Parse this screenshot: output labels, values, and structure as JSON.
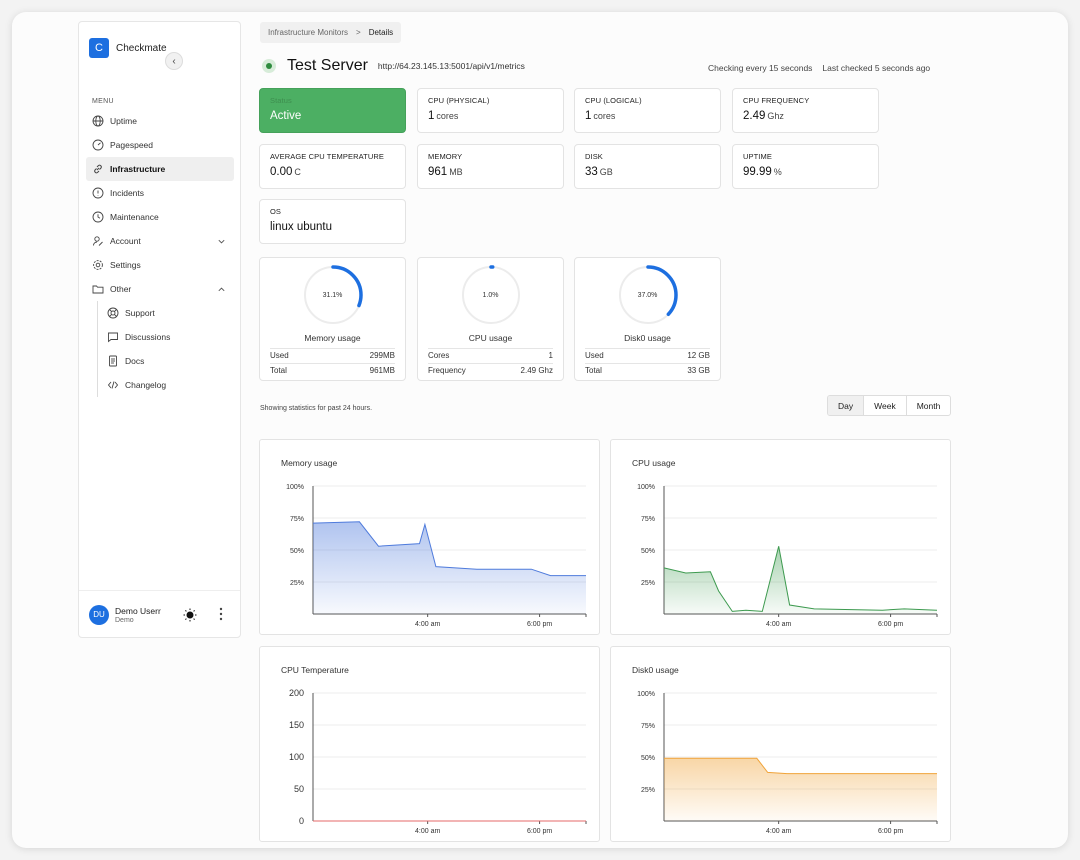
{
  "brand": {
    "logo_letter": "C",
    "name": "Checkmate",
    "accent": "#1d6fe0"
  },
  "sidebar": {
    "menu_label": "MENU",
    "items": [
      {
        "label": "Uptime",
        "icon": "globe-icon"
      },
      {
        "label": "Pagespeed",
        "icon": "gauge-icon"
      },
      {
        "label": "Infrastructure",
        "icon": "link-icon",
        "active": true
      },
      {
        "label": "Incidents",
        "icon": "alert-circle-icon"
      },
      {
        "label": "Maintenance",
        "icon": "clock-icon"
      },
      {
        "label": "Account",
        "icon": "user-edit-icon"
      },
      {
        "label": "Settings",
        "icon": "gear-icon"
      },
      {
        "label": "Other",
        "icon": "folder-icon"
      }
    ],
    "sub_items": [
      {
        "label": "Support",
        "icon": "lifebuoy-icon"
      },
      {
        "label": "Discussions",
        "icon": "chat-icon"
      },
      {
        "label": "Docs",
        "icon": "document-icon"
      },
      {
        "label": "Changelog",
        "icon": "code-icon"
      }
    ],
    "user": {
      "initials": "DU",
      "name": "Demo Userr",
      "role": "Demo"
    }
  },
  "breadcrumb": {
    "parent": "Infrastructure Monitors",
    "separator": ">",
    "current": "Details"
  },
  "header": {
    "title": "Test Server",
    "url": "http://64.23.145.13:5001/api/v1/metrics",
    "checking": "Checking every 15 seconds",
    "last_checked": "Last checked 5 seconds ago"
  },
  "stats": [
    {
      "label": "Status",
      "value": "Active",
      "unit": ""
    },
    {
      "label": "CPU (PHYSICAL)",
      "value": "1",
      "unit": "cores"
    },
    {
      "label": "CPU (LOGICAL)",
      "value": "1",
      "unit": "cores"
    },
    {
      "label": "CPU FREQUENCY",
      "value": "2.49",
      "unit": "Ghz"
    },
    {
      "label": "AVERAGE CPU TEMPERATURE",
      "value": "0.00",
      "unit": "C"
    },
    {
      "label": "MEMORY",
      "value": "961",
      "unit": "MB"
    },
    {
      "label": "DISK",
      "value": "33",
      "unit": "GB"
    },
    {
      "label": "UPTIME",
      "value": "99.99",
      "unit": "%"
    },
    {
      "label": "OS",
      "value": "linux ubuntu",
      "unit": ""
    }
  ],
  "gauges": [
    {
      "title": "Memory usage",
      "percent": 31.1,
      "percent_label": "31.1%",
      "rows": [
        {
          "label": "Used",
          "value": "299MB"
        },
        {
          "label": "Total",
          "value": "961MB"
        }
      ]
    },
    {
      "title": "CPU usage",
      "percent": 1.0,
      "percent_label": "1.0%",
      "rows": [
        {
          "label": "Cores",
          "value": "1"
        },
        {
          "label": "Frequency",
          "value": "2.49 Ghz"
        }
      ]
    },
    {
      "title": "Disk0 usage",
      "percent": 37.0,
      "percent_label": "37.0%",
      "rows": [
        {
          "label": "Used",
          "value": "12 GB"
        },
        {
          "label": "Total",
          "value": "33 GB"
        }
      ]
    }
  ],
  "showing_text": "Showing statistics for past 24 hours.",
  "range": {
    "options": [
      "Day",
      "Week",
      "Month"
    ],
    "selected": "Day"
  },
  "chart_data": [
    {
      "type": "area",
      "title": "Memory usage",
      "color": "#4f7bdc",
      "yticks": [
        "100%",
        "75%",
        "50%",
        "25%"
      ],
      "ylim": [
        0,
        100
      ],
      "xticks": [
        {
          "label": "4:00 am",
          "at": 0.42
        },
        {
          "label": "6:00 pm",
          "at": 0.83
        }
      ],
      "x": [
        0,
        0.17,
        0.24,
        0.39,
        0.41,
        0.45,
        0.6,
        0.8,
        0.87,
        1.0
      ],
      "values": [
        71,
        72,
        53,
        55,
        70,
        37,
        35,
        35,
        30,
        30
      ]
    },
    {
      "type": "area",
      "title": "CPU usage",
      "color": "#3d9a4f",
      "yticks": [
        "100%",
        "75%",
        "50%",
        "25%"
      ],
      "ylim": [
        0,
        100
      ],
      "xticks": [
        {
          "label": "4:00 am",
          "at": 0.42
        },
        {
          "label": "6:00 pm",
          "at": 0.83
        }
      ],
      "x": [
        0,
        0.08,
        0.17,
        0.2,
        0.25,
        0.3,
        0.36,
        0.42,
        0.46,
        0.55,
        0.8,
        0.88,
        1.0
      ],
      "values": [
        36,
        32,
        33,
        18,
        2,
        3,
        2,
        53,
        7,
        4,
        3,
        4,
        3
      ]
    },
    {
      "type": "line",
      "title": "CPU Temperature",
      "color": "#e46a6a",
      "yticks": [
        "200",
        "150",
        "100",
        "50",
        "0"
      ],
      "ylim": [
        0,
        200
      ],
      "xticks": [
        {
          "label": "4:00 am",
          "at": 0.42
        },
        {
          "label": "6:00 pm",
          "at": 0.83
        }
      ],
      "x": [
        0,
        1.0
      ],
      "values": [
        0,
        0
      ]
    },
    {
      "type": "area",
      "title": "Disk0 usage",
      "color": "#f0a43a",
      "yticks": [
        "100%",
        "75%",
        "50%",
        "25%"
      ],
      "ylim": [
        0,
        100
      ],
      "xticks": [
        {
          "label": "4:00 am",
          "at": 0.42
        },
        {
          "label": "6:00 pm",
          "at": 0.83
        }
      ],
      "x": [
        0,
        0.34,
        0.38,
        0.45,
        1.0
      ],
      "values": [
        49,
        49,
        38,
        37,
        37
      ]
    }
  ]
}
